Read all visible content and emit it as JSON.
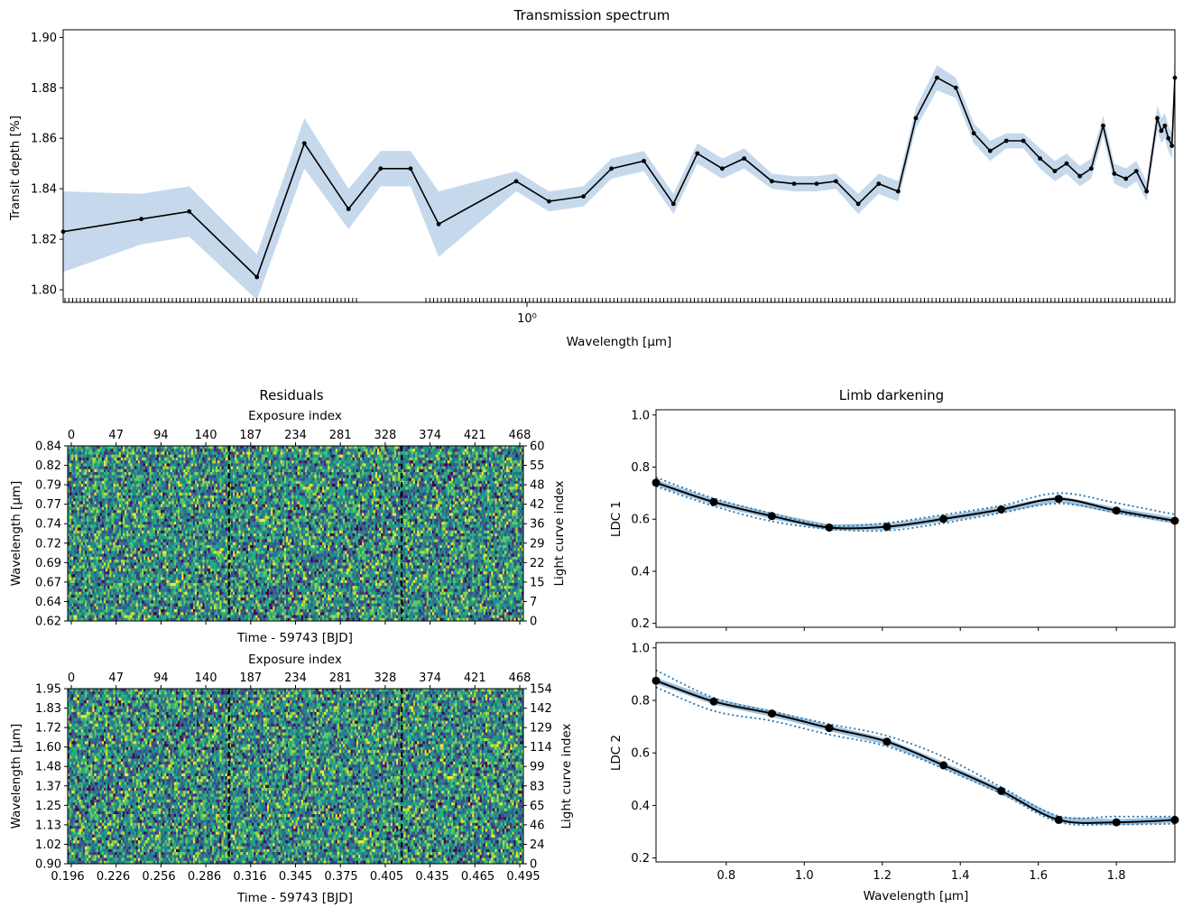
{
  "chart_data": [
    {
      "type": "line",
      "title": "Transmission spectrum",
      "xlabel": "Wavelength [μm]",
      "ylabel": "Transit depth [%]",
      "xscale": "log",
      "xlim": [
        0.62,
        1.95
      ],
      "ylim": [
        1.795,
        1.903
      ],
      "xtick_labels": [
        {
          "value": 1.0,
          "label": "10⁰"
        }
      ],
      "yticks": [
        "1.80",
        "1.82",
        "1.84",
        "1.86",
        "1.88",
        "1.90"
      ],
      "points": [
        [
          0.62,
          1.823
        ],
        [
          0.672,
          1.828
        ],
        [
          0.706,
          1.831
        ],
        [
          0.757,
          1.805
        ],
        [
          0.795,
          1.858
        ],
        [
          0.832,
          1.832
        ],
        [
          0.86,
          1.848
        ],
        [
          0.887,
          1.848
        ],
        [
          0.913,
          1.826
        ],
        [
          0.989,
          1.843
        ],
        [
          1.023,
          1.835
        ],
        [
          1.06,
          1.837
        ],
        [
          1.091,
          1.848
        ],
        [
          1.128,
          1.851
        ],
        [
          1.163,
          1.834
        ],
        [
          1.192,
          1.854
        ],
        [
          1.223,
          1.848
        ],
        [
          1.251,
          1.852
        ],
        [
          1.287,
          1.843
        ],
        [
          1.317,
          1.842
        ],
        [
          1.348,
          1.842
        ],
        [
          1.375,
          1.843
        ],
        [
          1.407,
          1.834
        ],
        [
          1.437,
          1.842
        ],
        [
          1.466,
          1.839
        ],
        [
          1.493,
          1.868
        ],
        [
          1.526,
          1.884
        ],
        [
          1.556,
          1.88
        ],
        [
          1.585,
          1.862
        ],
        [
          1.612,
          1.855
        ],
        [
          1.639,
          1.859
        ],
        [
          1.668,
          1.859
        ],
        [
          1.697,
          1.852
        ],
        [
          1.723,
          1.847
        ],
        [
          1.744,
          1.85
        ],
        [
          1.768,
          1.845
        ],
        [
          1.789,
          1.848
        ],
        [
          1.811,
          1.865
        ],
        [
          1.832,
          1.846
        ],
        [
          1.854,
          1.844
        ],
        [
          1.874,
          1.847
        ],
        [
          1.894,
          1.839
        ],
        [
          1.915,
          1.868
        ],
        [
          1.923,
          1.863
        ],
        [
          1.93,
          1.865
        ],
        [
          1.937,
          1.86
        ],
        [
          1.944,
          1.857
        ],
        [
          1.95,
          1.884
        ]
      ],
      "uncertainty": [
        0.016,
        0.01,
        0.01,
        0.009,
        0.01,
        0.008,
        0.007,
        0.007,
        0.013,
        0.004,
        0.004,
        0.004,
        0.004,
        0.004,
        0.004,
        0.004,
        0.004,
        0.004,
        0.003,
        0.003,
        0.003,
        0.003,
        0.004,
        0.004,
        0.004,
        0.004,
        0.005,
        0.004,
        0.004,
        0.004,
        0.003,
        0.003,
        0.004,
        0.004,
        0.004,
        0.004,
        0.004,
        0.004,
        0.004,
        0.004,
        0.004,
        0.004,
        0.005,
        0.005,
        0.005,
        0.005,
        0.005,
        0.013
      ],
      "line_color": "#000000",
      "band_color": "#c6d9ec"
    },
    {
      "type": "heatmap",
      "title": "Residuals",
      "xlabel": "Time - 59743 [BJD]",
      "ylabel": "Wavelength [μm]",
      "top_xlabel": "Exposure index",
      "right_ylabel": "Light curve index",
      "top_ticks": [
        "0",
        "47",
        "94",
        "140",
        "187",
        "234",
        "281",
        "328",
        "374",
        "421",
        "468"
      ],
      "left_ticks": [
        "0.62",
        "0.64",
        "0.67",
        "0.69",
        "0.72",
        "0.74",
        "0.77",
        "0.79",
        "0.82",
        "0.84"
      ],
      "right_ticks": [
        "0",
        "7",
        "15",
        "22",
        "29",
        "36",
        "42",
        "48",
        "55",
        "60"
      ],
      "dashed_lines_x": [
        0.354,
        0.733
      ],
      "rows": 61,
      "cols": 469,
      "colormap": "viridis"
    },
    {
      "type": "heatmap",
      "title": "",
      "xlabel": "Time - 59743 [BJD]",
      "ylabel": "Wavelength [μm]",
      "top_xlabel": "Exposure index",
      "right_ylabel": "Light curve index",
      "top_ticks": [
        "0",
        "47",
        "94",
        "140",
        "187",
        "234",
        "281",
        "328",
        "374",
        "421",
        "468"
      ],
      "bottom_ticks": [
        "0.196",
        "0.226",
        "0.256",
        "0.286",
        "0.316",
        "0.345",
        "0.375",
        "0.405",
        "0.435",
        "0.465",
        "0.495"
      ],
      "left_ticks": [
        "0.90",
        "1.02",
        "1.13",
        "1.25",
        "1.37",
        "1.48",
        "1.60",
        "1.72",
        "1.83",
        "1.95"
      ],
      "right_ticks": [
        "0",
        "24",
        "46",
        "65",
        "83",
        "99",
        "114",
        "129",
        "142",
        "154"
      ],
      "dashed_lines_x": [
        0.354,
        0.733
      ],
      "rows": 155,
      "cols": 469,
      "colormap": "viridis"
    },
    {
      "type": "line",
      "title": "Limb darkening",
      "xlabel": "",
      "ylabel": "LDC 1",
      "xlim": [
        0.62,
        1.95
      ],
      "ylim": [
        0.185,
        1.02
      ],
      "yticks": [
        "0.2",
        "0.4",
        "0.6",
        "0.8",
        "1.0"
      ],
      "points": [
        [
          0.62,
          0.74
        ],
        [
          0.768,
          0.666
        ],
        [
          0.917,
          0.612
        ],
        [
          1.064,
          0.568
        ],
        [
          1.212,
          0.571
        ],
        [
          1.357,
          0.601
        ],
        [
          1.505,
          0.637
        ],
        [
          1.652,
          0.678
        ],
        [
          1.8,
          0.633
        ],
        [
          1.95,
          0.594
        ]
      ],
      "upper_dotted": [
        [
          0.62,
          0.76
        ],
        [
          0.768,
          0.68
        ],
        [
          0.917,
          0.622
        ],
        [
          1.064,
          0.575
        ],
        [
          1.212,
          0.586
        ],
        [
          1.357,
          0.617
        ],
        [
          1.505,
          0.652
        ],
        [
          1.652,
          0.7
        ],
        [
          1.8,
          0.662
        ],
        [
          1.95,
          0.618
        ]
      ],
      "lower_dotted": [
        [
          0.62,
          0.726
        ],
        [
          0.768,
          0.65
        ],
        [
          0.917,
          0.592
        ],
        [
          1.064,
          0.562
        ],
        [
          1.212,
          0.556
        ],
        [
          1.357,
          0.585
        ],
        [
          1.505,
          0.624
        ],
        [
          1.652,
          0.66
        ],
        [
          1.8,
          0.625
        ],
        [
          1.95,
          0.588
        ]
      ],
      "line_color": "#000000",
      "dotted_color": "#1f77b4",
      "band_color": "#7ba6cc"
    },
    {
      "type": "line",
      "title": "",
      "xlabel": "Wavelength [μm]",
      "ylabel": "LDC 2",
      "xlim": [
        0.62,
        1.95
      ],
      "ylim": [
        0.185,
        1.02
      ],
      "xticks": [
        "0.8",
        "1.0",
        "1.2",
        "1.4",
        "1.6",
        "1.8"
      ],
      "yticks": [
        "0.2",
        "0.4",
        "0.6",
        "0.8",
        "1.0"
      ],
      "points": [
        [
          0.62,
          0.875
        ],
        [
          0.768,
          0.796
        ],
        [
          0.917,
          0.75
        ],
        [
          1.064,
          0.695
        ],
        [
          1.212,
          0.643
        ],
        [
          1.357,
          0.553
        ],
        [
          1.505,
          0.455
        ],
        [
          1.652,
          0.345
        ],
        [
          1.8,
          0.336
        ],
        [
          1.95,
          0.345
        ]
      ],
      "upper_dotted": [
        [
          0.62,
          0.915
        ],
        [
          0.768,
          0.81
        ],
        [
          0.917,
          0.758
        ],
        [
          1.064,
          0.71
        ],
        [
          1.212,
          0.665
        ],
        [
          1.357,
          0.585
        ],
        [
          1.505,
          0.47
        ],
        [
          1.652,
          0.36
        ],
        [
          1.8,
          0.358
        ],
        [
          1.95,
          0.358
        ]
      ],
      "lower_dotted": [
        [
          0.62,
          0.85
        ],
        [
          0.768,
          0.76
        ],
        [
          0.917,
          0.722
        ],
        [
          1.064,
          0.67
        ],
        [
          1.212,
          0.625
        ],
        [
          1.357,
          0.54
        ],
        [
          1.505,
          0.445
        ],
        [
          1.652,
          0.337
        ],
        [
          1.8,
          0.328
        ],
        [
          1.95,
          0.33
        ]
      ],
      "line_color": "#000000",
      "dotted_color": "#1f77b4",
      "band_color": "#7ba6cc"
    }
  ]
}
